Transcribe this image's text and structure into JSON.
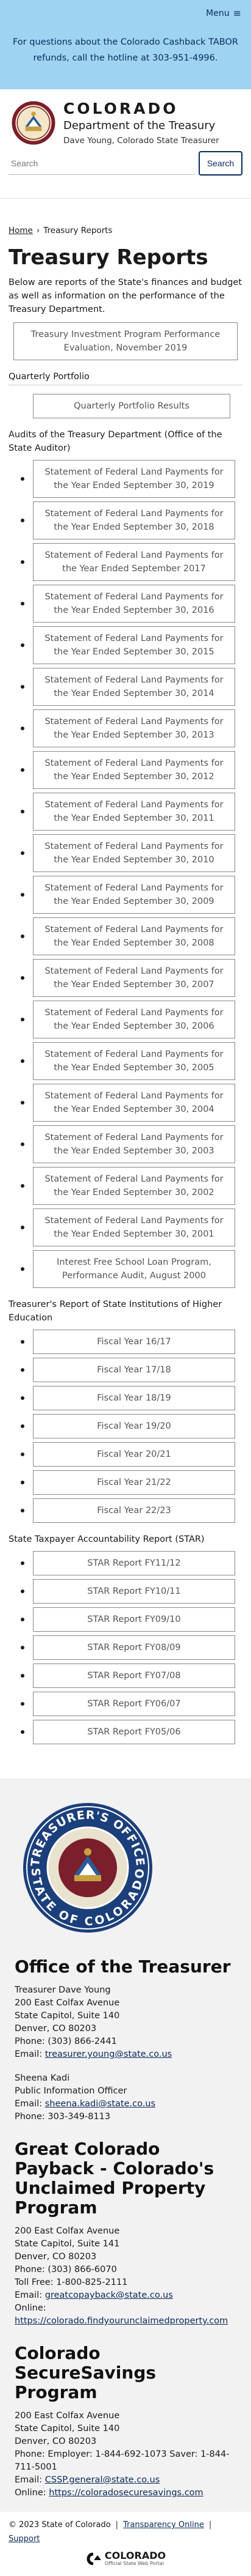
{
  "menu_label": "Menu",
  "alert": "For questions about the Colorado Cashback TABOR refunds, call the hotline at 303-951-4996.",
  "brand": {
    "title": "COLORADO",
    "subtitle": "Department of the Treasury",
    "treasurer": "Dave Young, Colorado State Treasurer"
  },
  "search": {
    "placeholder": "Search",
    "button": "Search"
  },
  "breadcrumb": {
    "home": "Home",
    "current": "Treasury Reports"
  },
  "page_title": "Treasury Reports",
  "intro": "Below are reports of the State's finances and budget as well as information on the performance of the Treasury Department.",
  "feature_report": "Treasury Investment Program Performance Evaluation, November 2019",
  "quarterly": {
    "heading": "Quarterly Portfolio",
    "button": "Quarterly Portfolio Results"
  },
  "audits": {
    "heading": "Audits of the Treasury Department (Office of the State Auditor)",
    "items": [
      "Statement of Federal Land Payments for the Year Ended September 30, 2019",
      "Statement of Federal Land Payments for the Year Ended September 30, 2018",
      "Statement of Federal Land Payments for the Year Ended September 2017",
      "Statement of Federal Land Payments for the Year Ended September 30, 2016",
      "Statement of Federal Land Payments for the Year Ended September 30, 2015",
      "Statement of Federal Land Payments for the Year Ended September 30, 2014",
      "Statement of Federal Land Payments for the Year Ended September 30, 2013",
      "Statement of Federal Land Payments for the Year Ended September 30, 2012",
      "Statement of Federal Land Payments for the Year Ended September 30, 2011",
      "Statement of Federal Land Payments for the Year Ended September 30, 2010",
      "Statement of Federal Land Payments for the Year Ended September 30, 2009",
      "Statement of Federal Land Payments for the Year Ended September 30, 2008",
      "Statement of Federal Land Payments for the Year Ended September 30, 2007",
      "Statement of Federal Land Payments for the Year Ended September 30, 2006",
      "Statement of Federal Land Payments for the Year Ended September 30, 2005",
      "Statement of Federal Land Payments for the Year Ended September 30, 2004",
      "Statement of Federal Land Payments for the Year Ended September 30, 2003",
      "Statement of Federal Land Payments for the Year Ended September 30, 2002",
      "Statement of Federal Land Payments for the Year Ended September 30, 2001",
      "Interest Free School Loan Program, Performance Audit, August 2000"
    ]
  },
  "state_institutions": {
    "heading": "Treasurer's Report of State Institutions of Higher Education",
    "items": [
      "Fiscal Year 16/17",
      "Fiscal Year 17/18",
      "Fiscal Year 18/19",
      "Fiscal Year 19/20",
      "Fiscal Year 20/21",
      "Fiscal Year 21/22",
      "Fiscal Year 22/23"
    ]
  },
  "star": {
    "heading": "State Taxpayer Accountability Report (STAR)",
    "items": [
      "STAR Report FY11/12",
      "STAR Report FY10/11",
      "STAR Report FY09/10",
      "STAR Report FY08/09",
      "STAR Report FY07/08",
      "STAR Report FY06/07",
      "STAR Report FY05/06"
    ]
  },
  "seal": {
    "ring_top": "TREASURER'S OFFICE",
    "ring_bottom": "STATE OF COLORADO"
  },
  "footer": {
    "office": {
      "heading": "Office of the Treasurer",
      "lines": [
        "Treasurer Dave Young",
        "200 East Colfax Avenue",
        "State Capitol, Suite 140",
        "Denver, CO 80203",
        "Phone: (303) 866-2441"
      ],
      "email_label": "Email: ",
      "email": "treasurer.young@state.co.us",
      "pio_lines": [
        "Sheena Kadi",
        "Public Information Officer"
      ],
      "pio_email_label": "Email: ",
      "pio_email": "sheena.kadi@state.co.us",
      "pio_phone": "Phone: 303-349-8113"
    },
    "payback": {
      "heading": "Great Colorado Payback - Colorado's Unclaimed Property Program",
      "lines": [
        "200 East Colfax Avenue",
        "State Capitol, Suite 141",
        "Denver, CO 80203",
        "Phone: (303) 866-6070",
        "Toll Free: 1-800-825-2111"
      ],
      "email_label": "Email: ",
      "email": "greatcopayback@state.co.us",
      "online_label": "Online: ",
      "online": "https://colorado.findyourunclaimedproperty.com"
    },
    "savings": {
      "heading": "Colorado SecureSavings Program",
      "lines": [
        "200 East Colfax Avenue",
        "State Capitol, Suite 140",
        "Denver, CO 80203",
        "Phone: Employer: 1-844-692-1073 Saver: 1-844-711-5001"
      ],
      "email_label": "Email: ",
      "email": "CSSP.general@state.co.us",
      "online_label": "Online: ",
      "online": "https://coloradosecuresavings.com"
    }
  },
  "bottom": {
    "copyright": "© 2023 State of Colorado",
    "links": [
      "Transparency Online",
      "Support"
    ],
    "logo_name": "COLORADO",
    "logo_sub": "Official State Web Portal"
  }
}
